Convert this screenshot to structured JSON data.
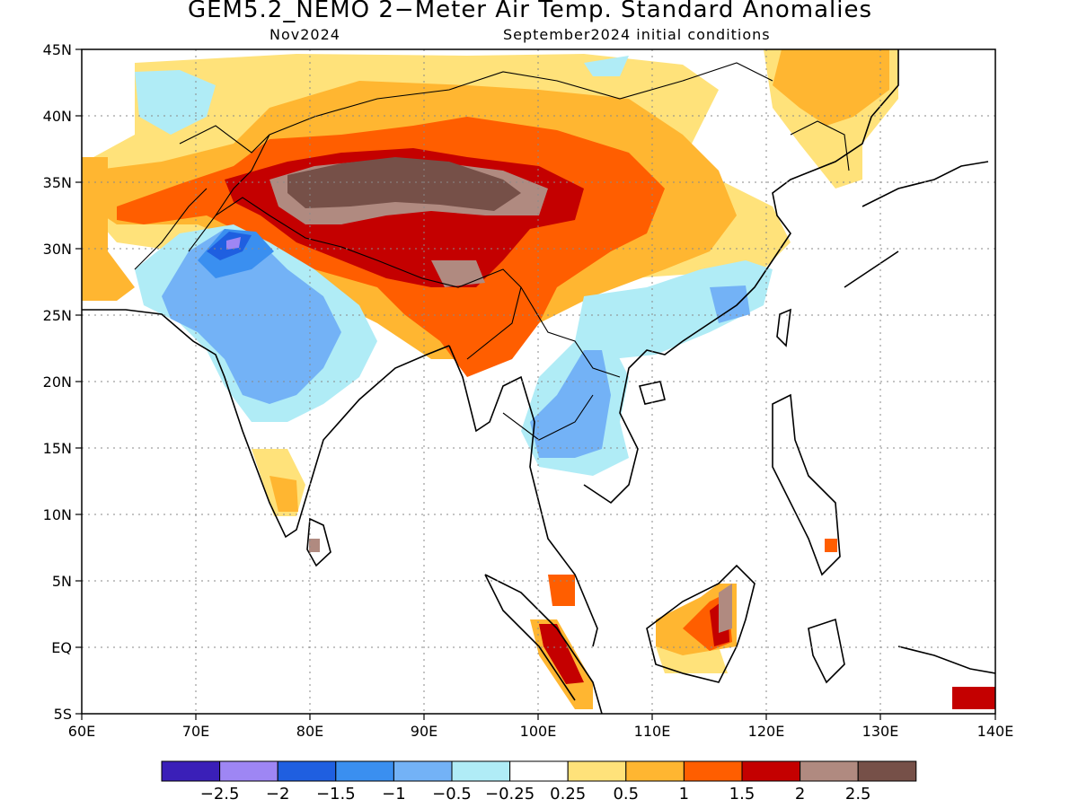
{
  "title": "GEM5.2_NEMO 2−Meter Air Temp. Standard Anomalies",
  "subtitle_left": "Nov2024",
  "subtitle_right": "September2024 initial conditions",
  "map": {
    "lon_range": [
      60,
      140
    ],
    "lat_range": [
      -5,
      45
    ],
    "lon_ticks": [
      "60E",
      "70E",
      "80E",
      "90E",
      "100E",
      "110E",
      "120E",
      "130E",
      "140E"
    ],
    "lat_ticks": [
      "45N",
      "40N",
      "35N",
      "30N",
      "25N",
      "20N",
      "15N",
      "10N",
      "5N",
      "EQ",
      "5S"
    ],
    "grid": "dotted"
  },
  "colorbar": {
    "colors": [
      "#3a1fb8",
      "#9e86f4",
      "#1f5fe0",
      "#3a8ff0",
      "#73b2f6",
      "#b0ecf6",
      "#ffffff",
      "#ffe27a",
      "#ffb631",
      "#ff5e00",
      "#c40000",
      "#b08a80",
      "#765048"
    ],
    "labels": [
      "−2.5",
      "−2",
      "−1.5",
      "−1",
      "−0.5",
      "−0.25",
      "0.25",
      "0.5",
      "1",
      "1.5",
      "2",
      "2.5"
    ]
  }
}
